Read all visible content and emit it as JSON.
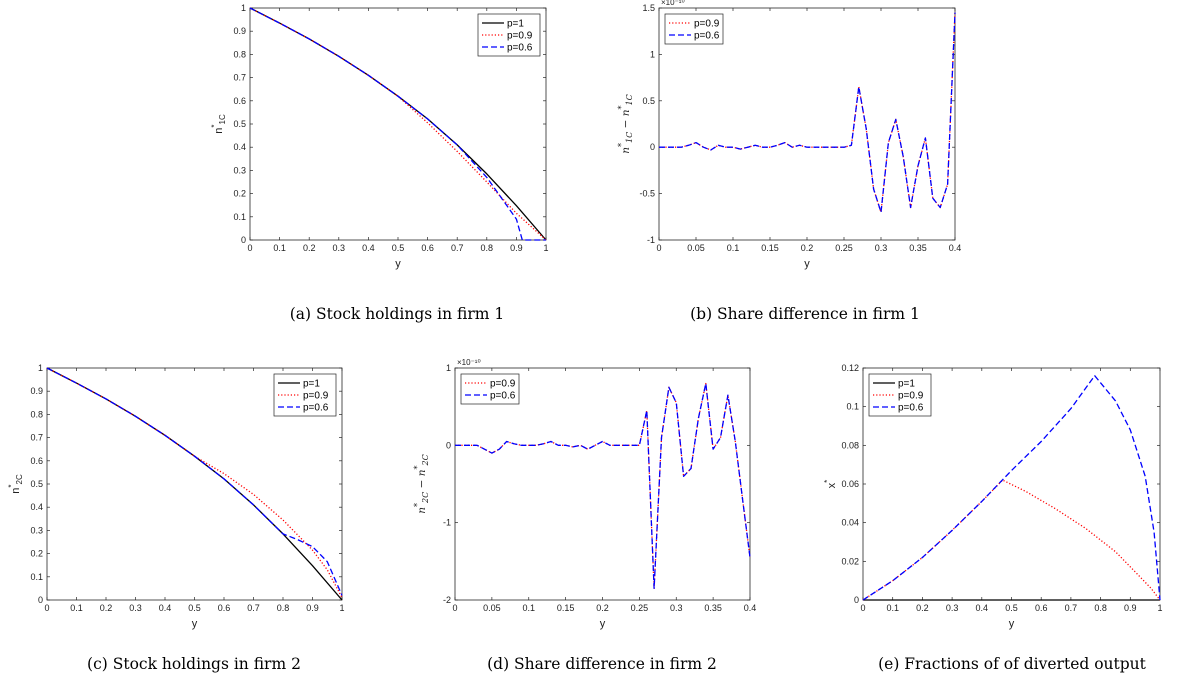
{
  "chart_data": [
    {
      "id": "a",
      "type": "line",
      "caption": "(a)  Stock holdings in firm 1",
      "xlabel": "y",
      "ylabel": "n*_1C",
      "ylabel_main": "n",
      "ylabel_sup": "*",
      "ylabel_sub": "1C",
      "xlim": [
        0,
        1
      ],
      "ylim": [
        0,
        1
      ],
      "xticks": [
        0,
        0.1,
        0.2,
        0.3,
        0.4,
        0.5,
        0.6,
        0.7,
        0.8,
        0.9,
        1
      ],
      "yticks": [
        0,
        0.1,
        0.2,
        0.3,
        0.4,
        0.5,
        0.6,
        0.7,
        0.8,
        0.9,
        1
      ],
      "exponent": "",
      "legend_position": "top-right",
      "series": [
        {
          "name": "p=1",
          "color": "#000000",
          "style": "solid",
          "x": [
            0,
            0.1,
            0.2,
            0.3,
            0.4,
            0.5,
            0.6,
            0.7,
            0.8,
            0.9,
            1.0
          ],
          "y": [
            1.0,
            0.935,
            0.867,
            0.792,
            0.71,
            0.62,
            0.522,
            0.41,
            0.285,
            0.148,
            0.0
          ]
        },
        {
          "name": "p=0.9",
          "color": "#ff0000",
          "style": "dotted",
          "x": [
            0,
            0.1,
            0.2,
            0.3,
            0.4,
            0.5,
            0.6,
            0.7,
            0.8,
            0.9,
            1.0
          ],
          "y": [
            1.0,
            0.935,
            0.867,
            0.792,
            0.71,
            0.62,
            0.505,
            0.382,
            0.25,
            0.115,
            0.0
          ]
        },
        {
          "name": "p=0.6",
          "color": "#0000ff",
          "style": "dashed",
          "x": [
            0,
            0.1,
            0.2,
            0.3,
            0.4,
            0.5,
            0.6,
            0.7,
            0.8,
            0.85,
            0.9,
            0.92,
            0.97,
            1.0
          ],
          "y": [
            1.0,
            0.935,
            0.867,
            0.792,
            0.71,
            0.62,
            0.522,
            0.41,
            0.27,
            0.18,
            0.09,
            0.0,
            0.0,
            0.0
          ]
        }
      ]
    },
    {
      "id": "b",
      "type": "line",
      "caption": "(b)  Share difference in firm 1",
      "xlabel": "y",
      "ylabel": "n*_1C − n̄*_1C",
      "ylabel_main": "n",
      "ylabel_sup": "*",
      "ylabel_sub": "1C",
      "ylabel_bar": true,
      "xlim": [
        0,
        0.4
      ],
      "ylim": [
        -1,
        1.5
      ],
      "xticks": [
        0,
        0.05,
        0.1,
        0.15,
        0.2,
        0.25,
        0.3,
        0.35,
        0.4
      ],
      "yticks": [
        -1,
        -0.5,
        0,
        0.5,
        1,
        1.5
      ],
      "exponent": "×10⁻¹⁰",
      "legend_position": "top-left",
      "series": [
        {
          "name": "p=0.9",
          "color": "#ff0000",
          "style": "dotted",
          "x": [
            0,
            0.03,
            0.04,
            0.05,
            0.06,
            0.07,
            0.08,
            0.09,
            0.1,
            0.11,
            0.12,
            0.13,
            0.14,
            0.15,
            0.16,
            0.17,
            0.18,
            0.19,
            0.2,
            0.21,
            0.22,
            0.23,
            0.24,
            0.25,
            0.26,
            0.27,
            0.28,
            0.29,
            0.3,
            0.31,
            0.32,
            0.33,
            0.34,
            0.35,
            0.36,
            0.37,
            0.38,
            0.39,
            0.4
          ],
          "y": [
            0,
            0,
            0.02,
            0.05,
            0,
            -0.03,
            0.02,
            0,
            0,
            -0.02,
            0,
            0.02,
            0,
            0,
            0.02,
            0.05,
            0,
            0.02,
            0,
            0,
            0,
            0,
            0,
            0,
            0.02,
            0.65,
            0.2,
            -0.45,
            -0.7,
            0.05,
            0.3,
            -0.1,
            -0.65,
            -0.2,
            0.1,
            -0.55,
            -0.65,
            -0.4,
            1.45
          ]
        },
        {
          "name": "p=0.6",
          "color": "#0000ff",
          "style": "dashed",
          "x": [
            0,
            0.03,
            0.04,
            0.05,
            0.06,
            0.07,
            0.08,
            0.09,
            0.1,
            0.11,
            0.12,
            0.13,
            0.14,
            0.15,
            0.16,
            0.17,
            0.18,
            0.19,
            0.2,
            0.21,
            0.22,
            0.23,
            0.24,
            0.25,
            0.26,
            0.27,
            0.28,
            0.29,
            0.3,
            0.31,
            0.32,
            0.33,
            0.34,
            0.35,
            0.36,
            0.37,
            0.38,
            0.39,
            0.4
          ],
          "y": [
            0,
            0,
            0.02,
            0.05,
            0,
            -0.03,
            0.02,
            0,
            0,
            -0.02,
            0,
            0.02,
            0,
            0,
            0.02,
            0.05,
            0,
            0.02,
            0,
            0,
            0,
            0,
            0,
            0,
            0.02,
            0.65,
            0.2,
            -0.45,
            -0.7,
            0.05,
            0.3,
            -0.1,
            -0.65,
            -0.2,
            0.1,
            -0.55,
            -0.65,
            -0.4,
            1.45
          ]
        }
      ]
    },
    {
      "id": "c",
      "type": "line",
      "caption": "(c)  Stock holdings in firm 2",
      "xlabel": "y",
      "ylabel": "n*_2C",
      "ylabel_main": "n",
      "ylabel_sup": "*",
      "ylabel_sub": "2C",
      "xlim": [
        0,
        1
      ],
      "ylim": [
        0,
        1
      ],
      "xticks": [
        0,
        0.1,
        0.2,
        0.3,
        0.4,
        0.5,
        0.6,
        0.7,
        0.8,
        0.9,
        1
      ],
      "yticks": [
        0,
        0.1,
        0.2,
        0.3,
        0.4,
        0.5,
        0.6,
        0.7,
        0.8,
        0.9,
        1
      ],
      "exponent": "",
      "legend_position": "top-right",
      "series": [
        {
          "name": "p=1",
          "color": "#000000",
          "style": "solid",
          "x": [
            0,
            0.1,
            0.2,
            0.3,
            0.4,
            0.5,
            0.6,
            0.7,
            0.8,
            0.9,
            1.0
          ],
          "y": [
            1.0,
            0.935,
            0.867,
            0.792,
            0.71,
            0.62,
            0.522,
            0.41,
            0.285,
            0.148,
            0.0
          ]
        },
        {
          "name": "p=0.9",
          "color": "#ff0000",
          "style": "dotted",
          "x": [
            0,
            0.1,
            0.2,
            0.3,
            0.4,
            0.5,
            0.6,
            0.7,
            0.8,
            0.9,
            0.95,
            1.0
          ],
          "y": [
            1.0,
            0.935,
            0.867,
            0.792,
            0.71,
            0.62,
            0.545,
            0.455,
            0.345,
            0.215,
            0.13,
            0.01
          ]
        },
        {
          "name": "p=0.6",
          "color": "#0000ff",
          "style": "dashed",
          "x": [
            0,
            0.1,
            0.2,
            0.3,
            0.4,
            0.5,
            0.6,
            0.7,
            0.8,
            0.85,
            0.9,
            0.95,
            1.0
          ],
          "y": [
            1.0,
            0.935,
            0.867,
            0.792,
            0.71,
            0.62,
            0.522,
            0.41,
            0.285,
            0.26,
            0.23,
            0.165,
            0.02
          ]
        }
      ]
    },
    {
      "id": "d",
      "type": "line",
      "caption": "(d)  Share difference in firm 2",
      "xlabel": "y",
      "ylabel": "n*_2C − n̄*_2C",
      "ylabel_main": "n",
      "ylabel_sup": "*",
      "ylabel_sub": "2C",
      "ylabel_bar": true,
      "xlim": [
        0,
        0.4
      ],
      "ylim": [
        -2,
        1
      ],
      "xticks": [
        0,
        0.05,
        0.1,
        0.15,
        0.2,
        0.25,
        0.3,
        0.35,
        0.4
      ],
      "yticks": [
        -2,
        -1,
        0,
        1
      ],
      "exponent": "×10⁻¹⁰",
      "legend_position": "top-left",
      "series": [
        {
          "name": "p=0.9",
          "color": "#ff0000",
          "style": "dotted",
          "x": [
            0,
            0.03,
            0.04,
            0.05,
            0.06,
            0.07,
            0.08,
            0.09,
            0.1,
            0.11,
            0.12,
            0.13,
            0.14,
            0.15,
            0.16,
            0.17,
            0.18,
            0.19,
            0.2,
            0.21,
            0.22,
            0.23,
            0.24,
            0.25,
            0.26,
            0.27,
            0.28,
            0.29,
            0.3,
            0.31,
            0.32,
            0.33,
            0.34,
            0.35,
            0.36,
            0.37,
            0.38,
            0.39,
            0.4
          ],
          "y": [
            0,
            0,
            -0.05,
            -0.1,
            -0.05,
            0.05,
            0.02,
            0,
            0,
            0,
            0.02,
            0.05,
            0,
            0,
            -0.02,
            0,
            -0.05,
            0,
            0.05,
            0,
            0,
            0,
            0,
            0,
            0.45,
            -1.85,
            0.1,
            0.75,
            0.55,
            -0.4,
            -0.3,
            0.35,
            0.8,
            -0.05,
            0.1,
            0.65,
            0.05,
            -0.7,
            -1.45
          ]
        },
        {
          "name": "p=0.6",
          "color": "#0000ff",
          "style": "dashed",
          "x": [
            0,
            0.03,
            0.04,
            0.05,
            0.06,
            0.07,
            0.08,
            0.09,
            0.1,
            0.11,
            0.12,
            0.13,
            0.14,
            0.15,
            0.16,
            0.17,
            0.18,
            0.19,
            0.2,
            0.21,
            0.22,
            0.23,
            0.24,
            0.25,
            0.26,
            0.27,
            0.28,
            0.29,
            0.3,
            0.31,
            0.32,
            0.33,
            0.34,
            0.35,
            0.36,
            0.37,
            0.38,
            0.39,
            0.4
          ],
          "y": [
            0,
            0,
            -0.05,
            -0.1,
            -0.05,
            0.05,
            0.02,
            0,
            0,
            0,
            0.02,
            0.05,
            0,
            0,
            -0.02,
            0,
            -0.05,
            0,
            0.05,
            0,
            0,
            0,
            0,
            0,
            0.45,
            -1.85,
            0.1,
            0.75,
            0.55,
            -0.4,
            -0.3,
            0.35,
            0.8,
            -0.05,
            0.1,
            0.65,
            0.05,
            -0.7,
            -1.45
          ]
        }
      ]
    },
    {
      "id": "e",
      "type": "line",
      "caption": "(e)  Fractions of of diverted output",
      "xlabel": "y",
      "ylabel": "x*",
      "ylabel_main": "x",
      "ylabel_sup": "*",
      "ylabel_sub": "",
      "xlim": [
        0,
        1
      ],
      "ylim": [
        0,
        0.12
      ],
      "xticks": [
        0,
        0.1,
        0.2,
        0.3,
        0.4,
        0.5,
        0.6,
        0.7,
        0.8,
        0.9,
        1
      ],
      "yticks": [
        0,
        0.02,
        0.04,
        0.06,
        0.08,
        0.1,
        0.12
      ],
      "exponent": "",
      "legend_position": "top-left",
      "series": [
        {
          "name": "p=1",
          "color": "#000000",
          "style": "solid",
          "x": [
            0,
            1.0
          ],
          "y": [
            0,
            0
          ]
        },
        {
          "name": "p=0.9",
          "color": "#ff0000",
          "style": "dotted",
          "x": [
            0,
            0.1,
            0.2,
            0.3,
            0.4,
            0.47,
            0.55,
            0.65,
            0.75,
            0.85,
            0.92,
            0.97,
            1.0
          ],
          "y": [
            0,
            0.01,
            0.022,
            0.036,
            0.051,
            0.062,
            0.056,
            0.047,
            0.037,
            0.025,
            0.014,
            0.006,
            0
          ]
        },
        {
          "name": "p=0.6",
          "color": "#0000ff",
          "style": "dashed",
          "x": [
            0,
            0.1,
            0.2,
            0.3,
            0.4,
            0.5,
            0.6,
            0.7,
            0.78,
            0.85,
            0.9,
            0.95,
            0.98,
            1.0
          ],
          "y": [
            0,
            0.01,
            0.022,
            0.036,
            0.051,
            0.067,
            0.082,
            0.099,
            0.116,
            0.103,
            0.088,
            0.064,
            0.035,
            0
          ]
        }
      ]
    }
  ]
}
